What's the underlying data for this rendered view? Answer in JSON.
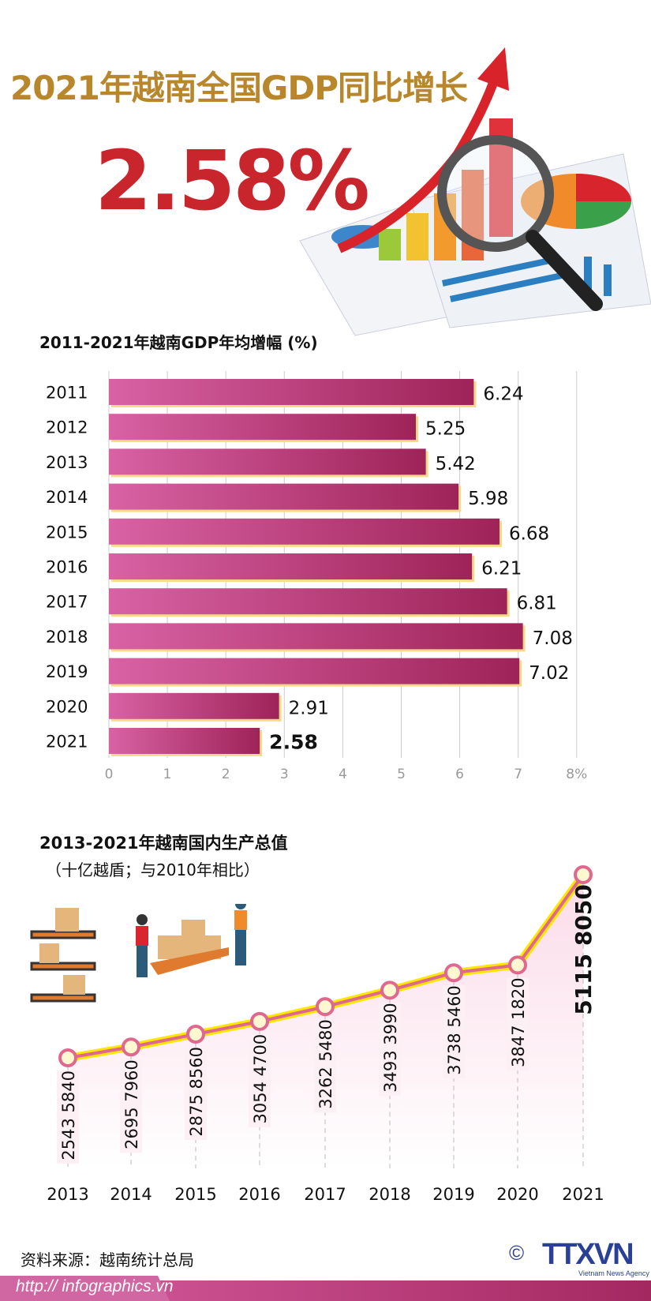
{
  "header": {
    "title": "2021年越南全国GDP同比增长",
    "headline_value": "2.58%"
  },
  "chart_data": [
    {
      "type": "bar",
      "orientation": "horizontal",
      "title": "2011-2021年越南GDP年均增幅 (%)",
      "categories": [
        "2011",
        "2012",
        "2013",
        "2014",
        "2015",
        "2016",
        "2017",
        "2018",
        "2019",
        "2020",
        "2021"
      ],
      "values": [
        6.24,
        5.25,
        5.42,
        5.98,
        6.68,
        6.21,
        6.81,
        7.08,
        7.02,
        2.91,
        2.58
      ],
      "value_labels": [
        "6.24",
        "5.25",
        "5.42",
        "5.98",
        "6.68",
        "6.21",
        "6.81",
        "7.08",
        "7.02",
        "2.91",
        "2.58"
      ],
      "xlim": [
        0,
        8
      ],
      "xticks": [
        "0",
        "1",
        "2",
        "3",
        "4",
        "5",
        "6",
        "7",
        "8%"
      ],
      "grid": true,
      "highlight": "2021",
      "colors": {
        "bar_start": "#d862a4",
        "bar_end": "#9e2358",
        "shadow": "#f7d98a"
      }
    },
    {
      "type": "line",
      "title": "2013-2021年越南国内生产总值",
      "subtitle": "（十亿越盾；与2010年相比）",
      "x": [
        "2013",
        "2014",
        "2015",
        "2016",
        "2017",
        "2018",
        "2019",
        "2020",
        "2021"
      ],
      "values": [
        2543.584,
        2695.796,
        2875.856,
        3054.47,
        3262.548,
        3493.399,
        3738.546,
        3847.182,
        5115.805
      ],
      "value_labels": [
        "2543 5840",
        "2695 7960",
        "2875 8560",
        "3054 4700",
        "3262 5480",
        "3493 3990",
        "3738 5460",
        "3847 1820",
        "5115 8050"
      ],
      "highlight": "2021",
      "colors": {
        "line": "#e0688f",
        "glow": "#ffe600",
        "fill": "#fce4ef",
        "marker": "#fff7d0"
      }
    }
  ],
  "footer": {
    "source": "资料来源：越南统计总局",
    "url": "http:// infographics.vn",
    "copyright": "©",
    "logo": "TTXVN",
    "agency": "Vietnam News Agency"
  }
}
